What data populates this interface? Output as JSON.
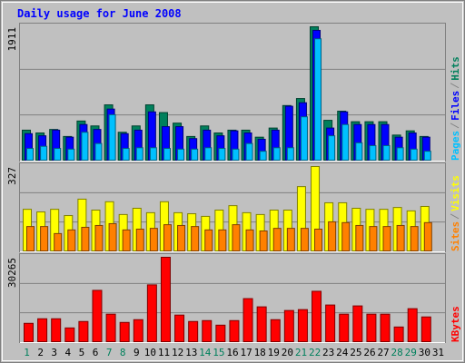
{
  "chart_data": [
    {
      "type": "bar",
      "title": "Daily usage for June 2008",
      "ylim": [
        0,
        1911
      ],
      "yticks": [
        1911
      ],
      "series": [
        {
          "name": "Hits",
          "color": "#00805c",
          "values": [
            440,
            400,
            450,
            350,
            570,
            500,
            800,
            410,
            500,
            800,
            690,
            540,
            350,
            500,
            400,
            440,
            440,
            340,
            470,
            790,
            890,
            1911,
            580,
            710,
            560,
            560,
            560,
            370,
            430,
            350,
            null
          ]
        },
        {
          "name": "Files",
          "color": "#0000ff",
          "values": [
            390,
            360,
            440,
            340,
            520,
            450,
            740,
            390,
            440,
            700,
            490,
            490,
            320,
            440,
            360,
            430,
            400,
            310,
            440,
            780,
            830,
            1860,
            470,
            700,
            520,
            520,
            520,
            340,
            400,
            340,
            null
          ]
        },
        {
          "name": "Pages",
          "color": "#00c0ff",
          "values": [
            180,
            210,
            180,
            170,
            410,
            250,
            660,
            180,
            190,
            190,
            180,
            170,
            170,
            190,
            180,
            170,
            250,
            140,
            190,
            190,
            630,
            1740,
            360,
            520,
            260,
            220,
            220,
            190,
            170,
            140,
            null
          ]
        }
      ]
    },
    {
      "type": "bar",
      "ylim": [
        0,
        327
      ],
      "yticks": [
        327
      ],
      "series": [
        {
          "name": "Visits",
          "color": "#ffff00",
          "values": [
            163,
            153,
            163,
            139,
            202,
            160,
            192,
            143,
            167,
            150,
            192,
            150,
            146,
            136,
            160,
            177,
            150,
            143,
            160,
            160,
            250,
            327,
            188,
            188,
            167,
            163,
            163,
            170,
            157,
            174,
            null
          ]
        },
        {
          "name": "Sites",
          "color": "#ff8000",
          "values": [
            97,
            97,
            70,
            84,
            94,
            101,
            108,
            84,
            87,
            90,
            104,
            101,
            97,
            84,
            84,
            104,
            84,
            80,
            90,
            90,
            90,
            87,
            115,
            112,
            101,
            97,
            97,
            101,
            97,
            112,
            null
          ]
        }
      ]
    },
    {
      "type": "bar",
      "ylim": [
        0,
        30265
      ],
      "yticks": [
        30265
      ],
      "categories": [
        "1",
        "2",
        "3",
        "4",
        "5",
        "6",
        "7",
        "8",
        "9",
        "10",
        "11",
        "12",
        "13",
        "14",
        "15",
        "16",
        "17",
        "18",
        "19",
        "20",
        "21",
        "22",
        "23",
        "24",
        "25",
        "26",
        "27",
        "28",
        "29",
        "30",
        "31"
      ],
      "category_colors": [
        "#00805c",
        "#000000",
        "#000000",
        "#000000",
        "#000000",
        "#000000",
        "#00805c",
        "#00805c",
        "#000000",
        "#000000",
        "#000000",
        "#000000",
        "#000000",
        "#00805c",
        "#00805c",
        "#000000",
        "#000000",
        "#000000",
        "#000000",
        "#000000",
        "#00805c",
        "#00805c",
        "#000000",
        "#000000",
        "#000000",
        "#000000",
        "#000000",
        "#00805c",
        "#00805c",
        "#000000",
        "#000000"
      ],
      "series": [
        {
          "name": "KBytes",
          "color": "#ff0000",
          "values": [
            6830,
            8450,
            8450,
            5200,
            7480,
            18530,
            10080,
            7150,
            8130,
            20480,
            30265,
            9760,
            7480,
            7800,
            6180,
            7800,
            15600,
            12680,
            8130,
            11380,
            11700,
            18200,
            13330,
            10080,
            13010,
            10080,
            10080,
            5530,
            12030,
            9100,
            null
          ]
        }
      ]
    }
  ]
}
